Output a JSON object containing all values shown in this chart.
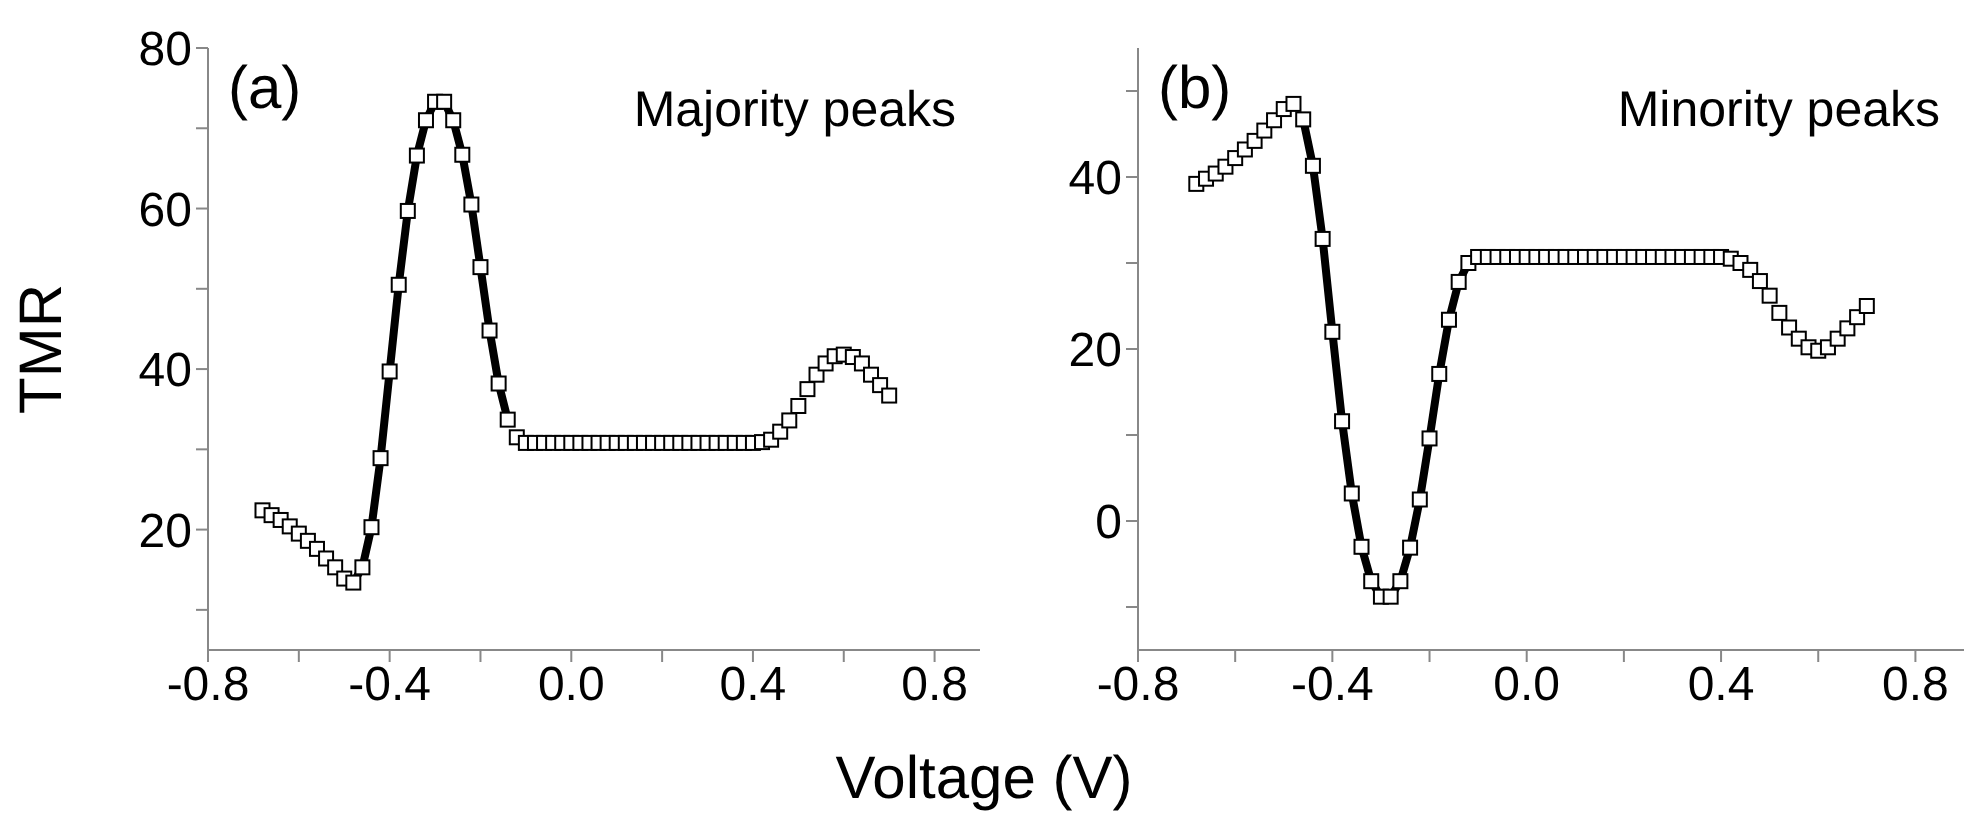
{
  "chart_data": [
    {
      "type": "scatter",
      "ylabel": "TMR",
      "xlabel": "Voltage (V)",
      "annotations": [
        "(a)",
        "Majority peaks"
      ],
      "marker": "square",
      "xlim": [
        -0.8,
        0.9
      ],
      "xticks": [
        {
          "value": -0.8,
          "label": "-0.8"
        },
        {
          "value": -0.6,
          "label": null
        },
        {
          "value": -0.4,
          "label": "-0.4"
        },
        {
          "value": -0.2,
          "label": null
        },
        {
          "value": 0,
          "label": "0.0"
        },
        {
          "value": 0.2,
          "label": null
        },
        {
          "value": 0.4,
          "label": "0.4"
        },
        {
          "value": 0.6,
          "label": null
        },
        {
          "value": 0.8,
          "label": "0.8"
        }
      ],
      "ylim": [
        5,
        80
      ],
      "yticks": [
        {
          "value": 10,
          "label": null
        },
        20,
        {
          "value": 30,
          "label": null
        },
        40,
        {
          "value": 50,
          "label": null
        },
        60,
        {
          "value": 70,
          "label": null
        },
        80
      ],
      "x": [
        -0.68,
        -0.66,
        -0.64,
        -0.62,
        -0.6,
        -0.58,
        -0.56,
        -0.54,
        -0.52,
        -0.5,
        -0.48,
        -0.46,
        -0.44,
        -0.42,
        -0.4,
        -0.38,
        -0.36,
        -0.34,
        -0.32,
        -0.3,
        -0.28,
        -0.26,
        -0.24,
        -0.22,
        -0.2,
        -0.18,
        -0.16,
        -0.14,
        -0.12,
        -0.1,
        -0.08,
        -0.06,
        -0.04,
        -0.02,
        0,
        0.02,
        0.04,
        0.06,
        0.08,
        0.1,
        0.12,
        0.14,
        0.16,
        0.18,
        0.2,
        0.22,
        0.24,
        0.26,
        0.28,
        0.3,
        0.32,
        0.34,
        0.36,
        0.38,
        0.4,
        0.42,
        0.44,
        0.46,
        0.48,
        0.5,
        0.52,
        0.54,
        0.56,
        0.58,
        0.6,
        0.62,
        0.64,
        0.66,
        0.68,
        0.7
      ],
      "series": [
        {
          "type": "line",
          "marker": "none",
          "color": "#000000",
          "line_style": "solid",
          "x": [
            -0.48,
            -0.46,
            -0.44,
            -0.42,
            -0.4,
            -0.38,
            -0.36,
            -0.34,
            -0.32,
            -0.3,
            -0.28,
            -0.26,
            -0.24,
            -0.22,
            -0.2,
            -0.18,
            -0.16,
            -0.14
          ],
          "values": [
            13.4,
            15.3,
            20.3,
            28.9,
            39.7,
            50.5,
            59.7,
            66.6,
            71.0,
            73.3,
            73.3,
            71.0,
            66.7,
            60.5,
            52.7,
            44.8,
            38.2,
            33.7
          ]
        },
        {
          "color": "#000000",
          "values": [
            22.4,
            21.8,
            21.2,
            20.4,
            19.5,
            18.6,
            17.6,
            16.4,
            15.3,
            13.9,
            13.4,
            15.3,
            20.3,
            28.9,
            39.7,
            50.5,
            59.7,
            66.6,
            71.0,
            73.3,
            73.3,
            71.0,
            66.7,
            60.5,
            52.7,
            44.8,
            38.2,
            33.7,
            31.5,
            30.8,
            30.8,
            30.8,
            30.8,
            30.8,
            30.8,
            30.8,
            30.8,
            30.8,
            30.8,
            30.8,
            30.8,
            30.8,
            30.8,
            30.8,
            30.8,
            30.8,
            30.8,
            30.8,
            30.8,
            30.8,
            30.8,
            30.8,
            30.8,
            30.8,
            30.8,
            30.9,
            31.2,
            32.2,
            33.6,
            35.4,
            37.5,
            39.3,
            40.7,
            41.6,
            41.8,
            41.5,
            40.7,
            39.3,
            38.0,
            36.7
          ]
        }
      ]
    },
    {
      "type": "scatter",
      "annotations": [
        "(b)",
        "Minority peaks"
      ],
      "marker": "square",
      "xlim": [
        -0.8,
        0.9
      ],
      "xticks": [
        {
          "value": -0.8,
          "label": "-0.8"
        },
        {
          "value": -0.6,
          "label": null
        },
        {
          "value": -0.4,
          "label": "-0.4"
        },
        {
          "value": -0.2,
          "label": null
        },
        {
          "value": 0,
          "label": "0.0"
        },
        {
          "value": 0.2,
          "label": null
        },
        {
          "value": 0.4,
          "label": "0.4"
        },
        {
          "value": 0.6,
          "label": null
        },
        {
          "value": 0.8,
          "label": "0.8"
        }
      ],
      "ylim": [
        -15,
        55
      ],
      "yticks": [
        {
          "value": -10,
          "label": null
        },
        0,
        {
          "value": 10,
          "label": null
        },
        20,
        {
          "value": 30,
          "label": null
        },
        40,
        {
          "value": 50,
          "label": null
        }
      ],
      "x": [
        -0.68,
        -0.66,
        -0.64,
        -0.62,
        -0.6,
        -0.58,
        -0.56,
        -0.54,
        -0.52,
        -0.5,
        -0.48,
        -0.46,
        -0.44,
        -0.42,
        -0.4,
        -0.38,
        -0.36,
        -0.34,
        -0.32,
        -0.3,
        -0.28,
        -0.26,
        -0.24,
        -0.22,
        -0.2,
        -0.18,
        -0.16,
        -0.14,
        -0.12,
        -0.1,
        -0.08,
        -0.06,
        -0.04,
        -0.02,
        0,
        0.02,
        0.04,
        0.06,
        0.08,
        0.1,
        0.12,
        0.14,
        0.16,
        0.18,
        0.2,
        0.22,
        0.24,
        0.26,
        0.28,
        0.3,
        0.32,
        0.34,
        0.36,
        0.38,
        0.4,
        0.42,
        0.44,
        0.46,
        0.48,
        0.5,
        0.52,
        0.54,
        0.56,
        0.58,
        0.6,
        0.62,
        0.64,
        0.66,
        0.68,
        0.7
      ],
      "series": [
        {
          "type": "line",
          "marker": "none",
          "color": "#000000",
          "line_style": "solid",
          "x": [
            -0.46,
            -0.44,
            -0.42,
            -0.4,
            -0.38,
            -0.36,
            -0.34,
            -0.32,
            -0.3,
            -0.28,
            -0.26,
            -0.24,
            -0.22,
            -0.2,
            -0.18,
            -0.16,
            -0.14,
            -0.12
          ],
          "values": [
            46.7,
            41.3,
            32.8,
            22.0,
            11.6,
            3.2,
            -3.0,
            -7.0,
            -8.8,
            -8.8,
            -7.0,
            -3.1,
            2.5,
            9.6,
            17.1,
            23.4,
            27.8,
            30.0
          ]
        },
        {
          "color": "#000000",
          "values": [
            39.2,
            39.8,
            40.4,
            41.2,
            42.2,
            43.2,
            44.2,
            45.4,
            46.6,
            47.9,
            48.5,
            46.7,
            41.3,
            32.8,
            22.0,
            11.6,
            3.2,
            -3.0,
            -7.0,
            -8.8,
            -8.8,
            -7.0,
            -3.1,
            2.5,
            9.6,
            17.1,
            23.4,
            27.8,
            30.0,
            30.7,
            30.7,
            30.7,
            30.7,
            30.7,
            30.7,
            30.7,
            30.7,
            30.7,
            30.7,
            30.7,
            30.7,
            30.7,
            30.7,
            30.7,
            30.7,
            30.7,
            30.7,
            30.7,
            30.7,
            30.7,
            30.7,
            30.7,
            30.7,
            30.7,
            30.7,
            30.5,
            30.0,
            29.2,
            27.9,
            26.2,
            24.2,
            22.5,
            21.2,
            20.2,
            19.8,
            20.2,
            21.2,
            22.4,
            23.7,
            25.0
          ]
        }
      ]
    }
  ]
}
